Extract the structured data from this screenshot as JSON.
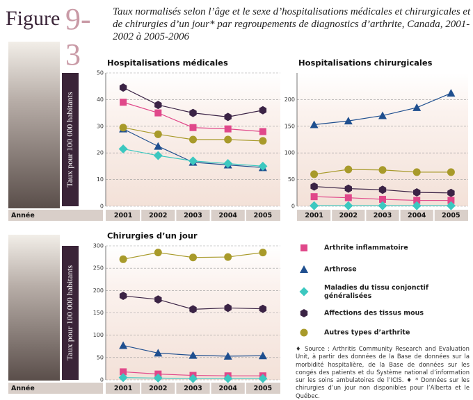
{
  "figure": {
    "label": "Figure",
    "number": "9-3",
    "caption": "Taux normalisés selon l’âge et le sexe d’hospitalisations médicales et chirurgicales et de chirurgies d’un jour* par regroupements de diagnostics d’arthrite, Canada, 2001-2002 à 2005-2006"
  },
  "source_note": "♦ Source : Arthritis Community Research and Evaluation Unit, à partir des données de la Base de données sur la morbidité hospitalière, de la Base de données sur les congés des patients et du Système national d’information sur les soins ambulatoires de l’ICIS. ♦ * Données sur les chirurgies d’un jour non disponibles pour l’Alberta et le Québec.",
  "chart_data": [
    {
      "type": "line",
      "title": "Hospitalisations médicales",
      "ylabel": "Taux pour 100 000 habitants",
      "xlabel": "Année",
      "categories": [
        "2001",
        "2002",
        "2003",
        "2004",
        "2005"
      ],
      "ylim": [
        0,
        50
      ],
      "yticks": [
        0,
        10,
        20,
        30,
        40,
        50
      ],
      "grid": true,
      "series": [
        {
          "name": "Arthrite inflammatoire",
          "color": "#e0488a",
          "marker": "square",
          "values": [
            39,
            35,
            29.5,
            29,
            28
          ]
        },
        {
          "name": "Arthrose",
          "color": "#1f4f8f",
          "marker": "triangle",
          "values": [
            29,
            22.5,
            16.5,
            15.5,
            14.5
          ]
        },
        {
          "name": "Maladies du tissu conjonctif généralisées",
          "color": "#3cc8c0",
          "marker": "diamond",
          "values": [
            21.5,
            19,
            17,
            16,
            15
          ]
        },
        {
          "name": "Affections des tissus mous",
          "color": "#3b2345",
          "marker": "hexagon",
          "values": [
            44.5,
            38,
            35,
            33.5,
            36
          ]
        },
        {
          "name": "Autres types d’arthrite",
          "color": "#a89a2a",
          "marker": "circle",
          "values": [
            29.5,
            27,
            25,
            25,
            24.5
          ]
        }
      ]
    },
    {
      "type": "line",
      "title": "Hospitalisations chirurgicales",
      "categories": [
        "2001",
        "2002",
        "2003",
        "2004",
        "2005"
      ],
      "ylim": [
        0,
        250
      ],
      "yticks": [
        0,
        50,
        100,
        150,
        200
      ],
      "grid": true,
      "series": [
        {
          "name": "Arthrite inflammatoire",
          "color": "#e0488a",
          "marker": "square",
          "values": [
            18,
            16,
            13,
            11,
            11
          ]
        },
        {
          "name": "Arthrose",
          "color": "#1f4f8f",
          "marker": "triangle",
          "values": [
            153,
            160,
            170,
            185,
            212
          ]
        },
        {
          "name": "Maladies du tissu conjonctif généralisées",
          "color": "#3cc8c0",
          "marker": "diamond",
          "values": [
            1,
            1,
            1,
            1,
            1
          ]
        },
        {
          "name": "Affections des tissus mous",
          "color": "#3b2345",
          "marker": "hexagon",
          "values": [
            37,
            33,
            31,
            26,
            25
          ]
        },
        {
          "name": "Autres types d’arthrite",
          "color": "#a89a2a",
          "marker": "circle",
          "values": [
            60,
            69,
            68,
            64,
            64
          ]
        }
      ]
    },
    {
      "type": "line",
      "title": "Chirurgies d’un jour",
      "ylabel": "Taux pour 100 000 habitants",
      "xlabel": "Année",
      "categories": [
        "2001",
        "2002",
        "2003",
        "2004",
        "2005"
      ],
      "ylim": [
        0,
        300
      ],
      "yticks": [
        0,
        50,
        100,
        150,
        200,
        250,
        300
      ],
      "grid": true,
      "series": [
        {
          "name": "Arthrite inflammatoire",
          "color": "#e0488a",
          "marker": "square",
          "values": [
            18,
            13,
            10,
            9,
            9
          ]
        },
        {
          "name": "Arthrose",
          "color": "#1f4f8f",
          "marker": "triangle",
          "values": [
            77,
            60,
            55,
            53,
            54
          ]
        },
        {
          "name": "Maladies du tissu conjonctif généralisées",
          "color": "#3cc8c0",
          "marker": "diamond",
          "values": [
            5,
            4,
            3,
            3,
            3
          ]
        },
        {
          "name": "Affections des tissus mous",
          "color": "#3b2345",
          "marker": "hexagon",
          "values": [
            188,
            180,
            158,
            161,
            159
          ]
        },
        {
          "name": "Autres types d’arthrite",
          "color": "#a89a2a",
          "marker": "circle",
          "values": [
            270,
            285,
            274,
            275,
            285
          ]
        }
      ]
    }
  ]
}
